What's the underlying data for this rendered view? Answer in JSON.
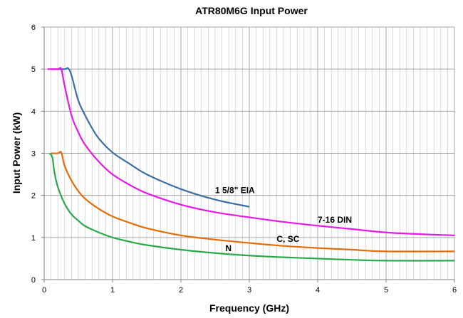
{
  "chart_data": {
    "type": "line",
    "title": "ATR80M6G Input Power",
    "xlabel": "Frequency (GHz)",
    "ylabel": "Input Power (kW)",
    "xlim": [
      0,
      6
    ],
    "ylim": [
      0,
      6
    ],
    "x_ticks": [
      "0",
      "1",
      "2",
      "3",
      "4",
      "5",
      "6"
    ],
    "y_ticks": [
      "0",
      "1",
      "2",
      "3",
      "4",
      "5",
      "6"
    ],
    "grid": {
      "major": true,
      "minor_x_step": 0.1
    },
    "colors": {
      "grid": "#a6a6a6",
      "axis": "#808080"
    },
    "series": [
      {
        "name": "1 5/8\" EIA",
        "color": "#3a6ea5",
        "label_at": [
          2.5,
          2.05
        ],
        "points": [
          [
            0.1,
            5.0
          ],
          [
            0.3,
            5.0
          ],
          [
            0.35,
            5.02
          ],
          [
            0.4,
            4.85
          ],
          [
            0.5,
            4.25
          ],
          [
            0.6,
            3.9
          ],
          [
            0.7,
            3.6
          ],
          [
            0.8,
            3.35
          ],
          [
            1.0,
            3.02
          ],
          [
            1.25,
            2.75
          ],
          [
            1.5,
            2.5
          ],
          [
            2.0,
            2.15
          ],
          [
            2.5,
            1.9
          ],
          [
            3.0,
            1.73
          ]
        ]
      },
      {
        "name": "7-16 DIN",
        "color": "#e619e6",
        "label_at": [
          4.0,
          1.35
        ],
        "points": [
          [
            0.05,
            5.0
          ],
          [
            0.2,
            5.0
          ],
          [
            0.25,
            5.0
          ],
          [
            0.3,
            4.6
          ],
          [
            0.4,
            3.9
          ],
          [
            0.5,
            3.5
          ],
          [
            0.6,
            3.2
          ],
          [
            0.8,
            2.8
          ],
          [
            1.0,
            2.5
          ],
          [
            1.25,
            2.25
          ],
          [
            1.5,
            2.05
          ],
          [
            2.0,
            1.78
          ],
          [
            2.5,
            1.6
          ],
          [
            3.0,
            1.48
          ],
          [
            3.5,
            1.37
          ],
          [
            4.0,
            1.28
          ],
          [
            4.5,
            1.2
          ],
          [
            5.0,
            1.12
          ],
          [
            5.5,
            1.08
          ],
          [
            6.0,
            1.05
          ]
        ]
      },
      {
        "name": "C, SC",
        "color": "#e36c0a",
        "label_at": [
          3.4,
          0.9
        ],
        "points": [
          [
            0.1,
            3.0
          ],
          [
            0.2,
            3.0
          ],
          [
            0.25,
            3.02
          ],
          [
            0.3,
            2.7
          ],
          [
            0.4,
            2.35
          ],
          [
            0.5,
            2.1
          ],
          [
            0.6,
            1.92
          ],
          [
            0.8,
            1.68
          ],
          [
            1.0,
            1.5
          ],
          [
            1.25,
            1.35
          ],
          [
            1.5,
            1.22
          ],
          [
            2.0,
            1.05
          ],
          [
            2.5,
            0.95
          ],
          [
            3.0,
            0.87
          ],
          [
            3.5,
            0.8
          ],
          [
            4.0,
            0.75
          ],
          [
            4.5,
            0.71
          ],
          [
            5.0,
            0.67
          ],
          [
            6.0,
            0.67
          ]
        ]
      },
      {
        "name": "N",
        "color": "#2aa84a",
        "label_at": [
          2.65,
          0.68
        ],
        "points": [
          [
            0.08,
            3.0
          ],
          [
            0.12,
            2.9
          ],
          [
            0.15,
            2.55
          ],
          [
            0.2,
            2.2
          ],
          [
            0.3,
            1.8
          ],
          [
            0.4,
            1.55
          ],
          [
            0.5,
            1.4
          ],
          [
            0.6,
            1.27
          ],
          [
            0.8,
            1.12
          ],
          [
            1.0,
            1.0
          ],
          [
            1.25,
            0.9
          ],
          [
            1.5,
            0.82
          ],
          [
            2.0,
            0.71
          ],
          [
            2.5,
            0.63
          ],
          [
            3.0,
            0.57
          ],
          [
            3.5,
            0.53
          ],
          [
            4.0,
            0.5
          ],
          [
            4.5,
            0.47
          ],
          [
            5.0,
            0.45
          ],
          [
            6.0,
            0.45
          ]
        ]
      }
    ]
  }
}
